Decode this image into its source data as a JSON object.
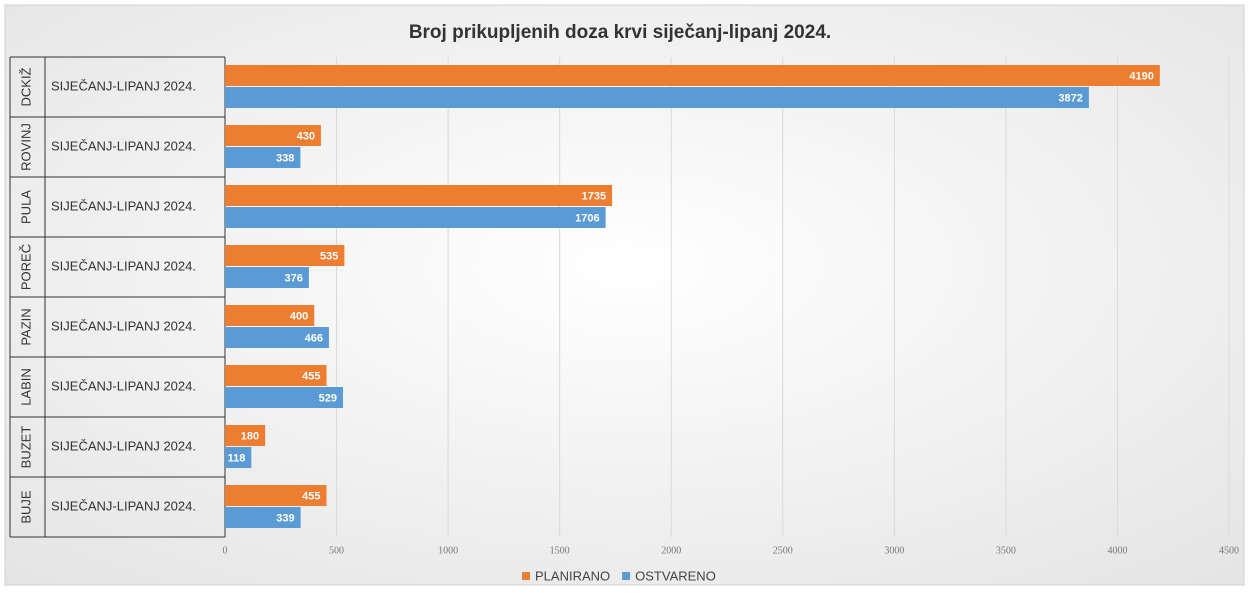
{
  "chart_data": {
    "type": "bar",
    "orientation": "horizontal",
    "title": "Broj prikupljenih doza krvi siječanj-lipanj 2024.",
    "groups": [
      "DCKIŽ",
      "ROVINJ",
      "PULA",
      "POREČ",
      "PAZIN",
      "LABIN",
      "BUZET",
      "BUJE"
    ],
    "categories": [
      "SIJEČANJ-LIPANJ 2024.",
      "SIJEČANJ-LIPANJ 2024.",
      "SIJEČANJ-LIPANJ 2024.",
      "SIJEČANJ-LIPANJ 2024.",
      "SIJEČANJ-LIPANJ 2024.",
      "SIJEČANJ-LIPANJ 2024.",
      "SIJEČANJ-LIPANJ 2024.",
      "SIJEČANJ-LIPANJ 2024."
    ],
    "series": [
      {
        "name": "PLANIRANO",
        "color": "#ed7d31",
        "values": [
          4190,
          430,
          1735,
          535,
          400,
          455,
          180,
          455
        ]
      },
      {
        "name": "OSTVARENO",
        "color": "#5b9bd5",
        "values": [
          3872,
          338,
          1706,
          376,
          466,
          529,
          118,
          339
        ]
      }
    ],
    "xlim": [
      0,
      4500
    ],
    "xticks": [
      0,
      500,
      1000,
      1500,
      2000,
      2500,
      3000,
      3500,
      4000,
      4500
    ],
    "grid": true,
    "legend": "bottom"
  }
}
